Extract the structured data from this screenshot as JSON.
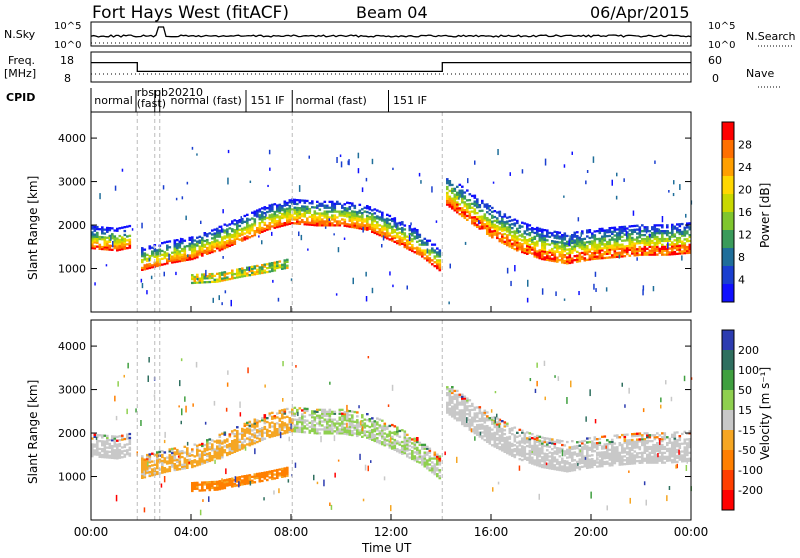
{
  "header": {
    "station": "Fort Hays West (fitACF)",
    "beam": "Beam 04",
    "date": "06/Apr/2015"
  },
  "left_labels": {
    "nsky": "N.Sky",
    "freq_line1": "Freq.",
    "freq_line2": "[MHz]",
    "cpid": "CPID"
  },
  "right_labels": {
    "nsearch": "N.Search",
    "nave": "Nave"
  },
  "noise_axis": {
    "top": "10^5",
    "bottom": "10^0",
    "right_top": "10^5",
    "right_bottom": "10^0"
  },
  "freq_axis": {
    "ticks": [
      "18",
      "8"
    ],
    "right_ticks": [
      "60",
      "0"
    ]
  },
  "cpid_labels": [
    {
      "text": "normal",
      "t": 0.05
    },
    {
      "text": "rbspb20210",
      "t": 1.75
    },
    {
      "text": "(fast)",
      "t": 1.75
    },
    {
      "text": "normal (fast)",
      "t": 3.1
    },
    {
      "text": "151 IF",
      "t": 6.3
    },
    {
      "text": "normal (fast)",
      "t": 8.1
    },
    {
      "text": "151 IF",
      "t": 12.0
    }
  ],
  "panels": [
    {
      "name": "power",
      "ylabel": "Slant Range [km]",
      "yticks": [
        "1000",
        "2000",
        "3000",
        "4000"
      ],
      "colorbar_label": "Power [dB]",
      "colorbar_ticks": [
        "28",
        "24",
        "20",
        "16",
        "12",
        "8",
        "4"
      ],
      "colors": [
        "#ff0000",
        "#ff6f00",
        "#ff9f00",
        "#ffd700",
        "#c8d800",
        "#7fc62e",
        "#3a9b5a",
        "#1f6e9a",
        "#1a3fd0",
        "#1010ff"
      ]
    },
    {
      "name": "velocity",
      "ylabel": "Slant Range [km]",
      "yticks": [
        "1000",
        "2000",
        "3000",
        "4000"
      ],
      "colorbar_label": "Velocity [m s⁻¹]",
      "colorbar_ticks": [
        "200",
        "100",
        "50",
        "15",
        "-15",
        "-50",
        "-100",
        "-200"
      ],
      "colors": [
        "#2c3cb0",
        "#2f6f5f",
        "#3f9f3f",
        "#8fd04f",
        "#c8c8c8",
        "#f5a623",
        "#ff7f00",
        "#ff3f00",
        "#ff0000"
      ]
    }
  ],
  "x_axis": {
    "label": "Time UT",
    "ticks": [
      "00:00",
      "04:00",
      "08:00",
      "12:00",
      "16:00",
      "20:00",
      "00:00"
    ]
  },
  "chart_data": {
    "type": "heatmap",
    "title": "Fort Hays West (fitACF)",
    "subtitle": "Beam 04",
    "date": "06/Apr/2015",
    "x_unit": "hours UT",
    "xlim": [
      0,
      24
    ],
    "ylim": [
      0,
      4600
    ],
    "xlabel": "Time UT",
    "ylabel": "Slant Range [km]",
    "frequency_MHz": [
      {
        "t_start": 0.0,
        "t_end": 1.85,
        "value": 15
      },
      {
        "t_start": 1.85,
        "t_end": 14.05,
        "value": 11
      },
      {
        "t_start": 14.05,
        "t_end": 24.0,
        "value": 15
      }
    ],
    "echo_bands": [
      {
        "name": "main",
        "points": [
          [
            0.0,
            1700
          ],
          [
            1.0,
            1650
          ],
          [
            1.8,
            1750
          ],
          [
            2.0,
            1200
          ],
          [
            3.0,
            1350
          ],
          [
            4.0,
            1450
          ],
          [
            5.0,
            1650
          ],
          [
            6.0,
            1900
          ],
          [
            7.0,
            2150
          ],
          [
            8.0,
            2300
          ],
          [
            9.0,
            2250
          ],
          [
            10.0,
            2250
          ],
          [
            11.0,
            2150
          ],
          [
            12.0,
            1900
          ],
          [
            13.0,
            1600
          ],
          [
            14.0,
            1150
          ],
          [
            14.2,
            2800
          ],
          [
            15.0,
            2450
          ],
          [
            16.0,
            2050
          ],
          [
            17.0,
            1750
          ],
          [
            18.0,
            1550
          ],
          [
            19.0,
            1450
          ],
          [
            20.0,
            1550
          ],
          [
            21.0,
            1600
          ],
          [
            22.0,
            1650
          ],
          [
            23.0,
            1650
          ],
          [
            24.0,
            1700
          ]
        ]
      },
      {
        "name": "lower",
        "points": [
          [
            4.0,
            750
          ],
          [
            5.0,
            780
          ],
          [
            6.0,
            900
          ],
          [
            7.0,
            1000
          ],
          [
            7.8,
            1100
          ]
        ]
      }
    ],
    "power_dB": {
      "range": [
        4,
        30
      ],
      "colorbar_ticks": [
        28,
        24,
        20,
        16,
        12,
        8,
        4
      ]
    },
    "velocity_ms": {
      "range": [
        -200,
        200
      ],
      "colorbar_ticks": [
        200,
        100,
        50,
        15,
        -15,
        -50,
        -100,
        -200
      ]
    }
  }
}
